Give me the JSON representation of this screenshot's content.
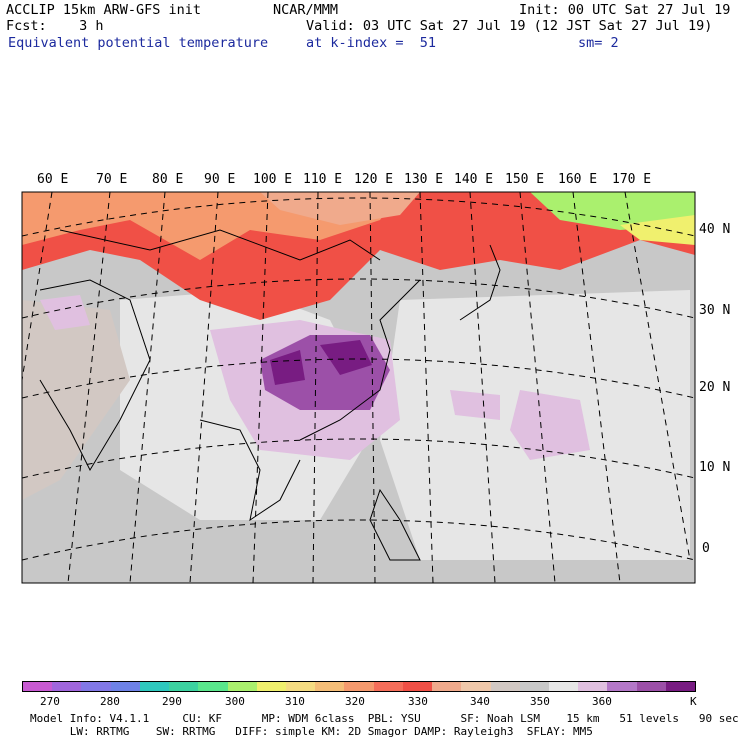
{
  "header": {
    "model": "ACCLIP 15km ARW-GFS init",
    "center": "NCAR/MMM",
    "init": "Init: 00 UTC Sat 27 Jul 19",
    "fcst": "Fcst:    3 h",
    "valid": "Valid: 03 UTC Sat 27 Jul 19 (12 JST Sat 27 Jul 19)",
    "field": "Equivalent potential temperature",
    "level": "at k-index =  51",
    "smooth": "sm= 2"
  },
  "map": {
    "lon_labels": [
      "60 E",
      "70 E",
      "80 E",
      "90 E",
      "100 E",
      "110 E",
      "120 E",
      "130 E",
      "140 E",
      "150 E",
      "160 E",
      "170 E"
    ],
    "lat_labels": [
      "40 N",
      "30 N",
      "20 N",
      "10 N",
      "0"
    ]
  },
  "colorbar": {
    "colors": [
      "#c85ad2",
      "#a066dc",
      "#8278e6",
      "#6e82e6",
      "#2ec8be",
      "#3cd2a0",
      "#5ae68c",
      "#aaf06e",
      "#f0f06e",
      "#f5dc82",
      "#f5be78",
      "#f59a6e",
      "#f56e5a",
      "#f05046",
      "#f0aa8c",
      "#f0c8aa",
      "#d2c8c3",
      "#c8c8c8",
      "#e6e6e6",
      "#e0c0e0",
      "#b478c8",
      "#9c50a8",
      "#781c82"
    ],
    "ticks": [
      "270",
      "280",
      "290",
      "300",
      "310",
      "320",
      "330",
      "340",
      "350",
      "360"
    ],
    "unit": "K"
  },
  "footer": {
    "line1": "Model Info: V4.1.1     CU: KF      MP: WDM 6class  PBL: YSU      SF: Noah LSM    15 km   51 levels   90 sec",
    "line2": "      LW: RRTMG    SW: RRTMG   DIFF: simple KM: 2D Smagor DAMP: Rayleigh3  SFLAY: MM5"
  }
}
